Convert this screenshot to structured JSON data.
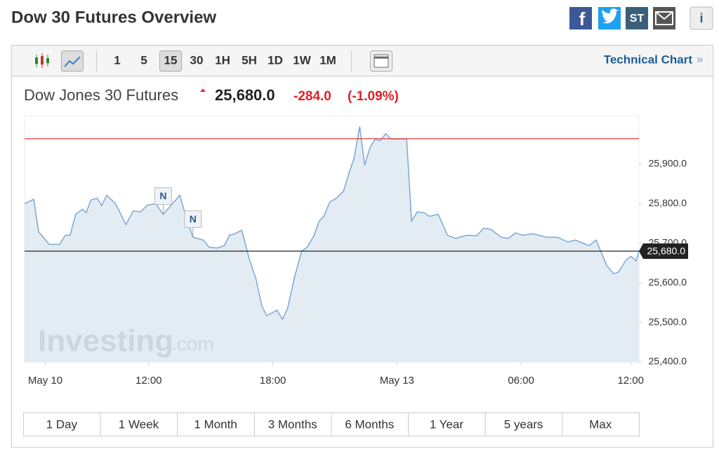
{
  "header": {
    "title": "Dow 30 Futures Overview",
    "icons": [
      "f",
      "ST",
      "i"
    ]
  },
  "toolbar": {
    "intervals": [
      "1",
      "5",
      "15",
      "30",
      "1H",
      "5H",
      "1D",
      "1W",
      "1M"
    ],
    "active_interval": "15",
    "link": "Technical Chart",
    "link_arrow": "»"
  },
  "quote": {
    "name": "Dow Jones 30 Futures",
    "price": "25,680.0",
    "change": "-284.0",
    "change_percent": "(-1.09%)"
  },
  "watermark": {
    "brand": "Investing",
    "suffix": ".com"
  },
  "ranges": [
    "1 Day",
    "1 Week",
    "1 Month",
    "3 Months",
    "6 Months",
    "1 Year",
    "5 years",
    "Max"
  ],
  "chart_data": {
    "type": "area",
    "x": [
      6.0,
      6.44,
      6.68,
      7.19,
      7.69,
      7.97,
      8.2,
      8.47,
      8.8,
      8.98,
      9.2,
      9.5,
      9.73,
      9.97,
      10.4,
      10.9,
      11.25,
      11.6,
      11.93,
      12.34,
      12.7,
      12.95,
      13.3,
      13.5,
      13.8,
      14.14,
      14.64,
      14.92,
      15.32,
      15.66,
      15.9,
      16.17,
      16.5,
      16.85,
      17.19,
      17.46,
      17.7,
      18.03,
      18.2,
      18.47,
      18.71,
      19.05,
      19.39,
      19.66,
      20.0,
      20.24,
      20.47,
      20.75,
      21.08,
      21.42,
      21.7,
      21.93,
      22.2,
      22.44,
      22.7,
      22.95,
      23.19,
      23.46,
      23.7,
      24.14,
      24.47,
      24.71,
      24.98,
      25.32,
      25.56,
      26.0,
      26.44,
      26.85,
      27.36,
      27.86,
      28.2,
      28.54,
      29.05,
      29.39,
      29.73,
      30.07,
      30.58,
      31.25,
      31.76,
      32.27,
      32.61,
      33.29,
      33.63,
      34.14,
      34.47,
      34.71,
      35.08,
      35.32,
      35.56,
      35.7
    ],
    "series": [
      {
        "color": "#7aa9d6",
        "values": [
          25800,
          25811,
          25729,
          25697,
          25697,
          25720,
          25720,
          25773,
          25786,
          25777,
          25809,
          25814,
          25795,
          25821,
          25800,
          25747,
          25782,
          25779,
          25796,
          25800,
          25773,
          25788,
          25809,
          25821,
          25768,
          25715,
          25708,
          25690,
          25688,
          25694,
          25720,
          25724,
          25733,
          25662,
          25609,
          25543,
          25517,
          25526,
          25531,
          25508,
          25535,
          25614,
          25680,
          25690,
          25720,
          25756,
          25768,
          25804,
          25814,
          25832,
          25880,
          25915,
          25995,
          25897,
          25942,
          25963,
          25959,
          25977,
          25963,
          25963,
          25963,
          25756,
          25779,
          25777,
          25768,
          25773,
          25720,
          25712,
          25720,
          25719,
          25738,
          25735,
          25715,
          25712,
          25726,
          25720,
          25724,
          25715,
          25715,
          25703,
          25708,
          25694,
          25708,
          25644,
          25623,
          25627,
          25658,
          25667,
          25655,
          25680
        ]
      }
    ],
    "xlim": [
      6,
      35.7
    ],
    "xticks": [
      {
        "value": 7,
        "label": "May 10"
      },
      {
        "value": 12,
        "label": "12:00"
      },
      {
        "value": 18,
        "label": "18:00"
      },
      {
        "value": 24,
        "label": "May 13"
      },
      {
        "value": 30,
        "label": "06:00"
      },
      {
        "value": 35.3,
        "label": "12:00"
      }
    ],
    "ylim": [
      25400,
      26022
    ],
    "yticks": [
      {
        "value": 25400,
        "label": "25,400.0"
      },
      {
        "value": 25500,
        "label": "25,500.0"
      },
      {
        "value": 25600,
        "label": "25,600.0"
      },
      {
        "value": 25700,
        "label": "25,700.0"
      },
      {
        "value": 25800,
        "label": "25,800.0"
      },
      {
        "value": 25900,
        "label": "25,900.0"
      }
    ],
    "reference_line": {
      "value": 25964,
      "color": "#e0403a"
    },
    "last": {
      "value": 25680,
      "label": "25,680.0",
      "color": "#222222"
    },
    "annotations": [
      {
        "x": 12.7,
        "y": 25773,
        "text": "N"
      },
      {
        "x": 14.14,
        "y": 25715,
        "text": "N"
      }
    ]
  }
}
